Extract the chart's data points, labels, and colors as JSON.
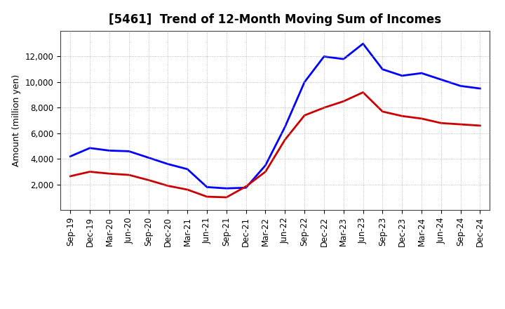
{
  "title": "[5461]  Trend of 12-Month Moving Sum of Incomes",
  "ylabel": "Amount (million yen)",
  "labels": [
    "Sep-19",
    "Dec-19",
    "Mar-20",
    "Jun-20",
    "Sep-20",
    "Dec-20",
    "Mar-21",
    "Jun-21",
    "Sep-21",
    "Dec-21",
    "Mar-22",
    "Jun-22",
    "Sep-22",
    "Dec-22",
    "Mar-23",
    "Jun-23",
    "Sep-23",
    "Dec-23",
    "Mar-24",
    "Jun-24",
    "Sep-24",
    "Dec-24"
  ],
  "ordinary_income": [
    4200,
    4850,
    4650,
    4600,
    4100,
    3600,
    3200,
    1800,
    1700,
    1750,
    3500,
    6500,
    10000,
    12000,
    11800,
    13000,
    11000,
    10500,
    10700,
    10200,
    9700,
    9500
  ],
  "net_income": [
    2650,
    3000,
    2850,
    2750,
    2350,
    1900,
    1600,
    1050,
    1000,
    1850,
    3000,
    5500,
    7400,
    8000,
    8500,
    9200,
    7700,
    7350,
    7150,
    6800,
    6700,
    6600
  ],
  "ordinary_color": "#0000ff",
  "net_color": "#cc0000",
  "background_color": "#ffffff",
  "grid_color": "#aaaaaa",
  "ylim_min": 0,
  "ylim_max": 14000,
  "yticks": [
    2000,
    4000,
    6000,
    8000,
    10000,
    12000
  ],
  "line_width": 2.0,
  "title_fontsize": 12,
  "axis_label_fontsize": 9,
  "tick_fontsize": 8.5,
  "legend_fontsize": 10
}
